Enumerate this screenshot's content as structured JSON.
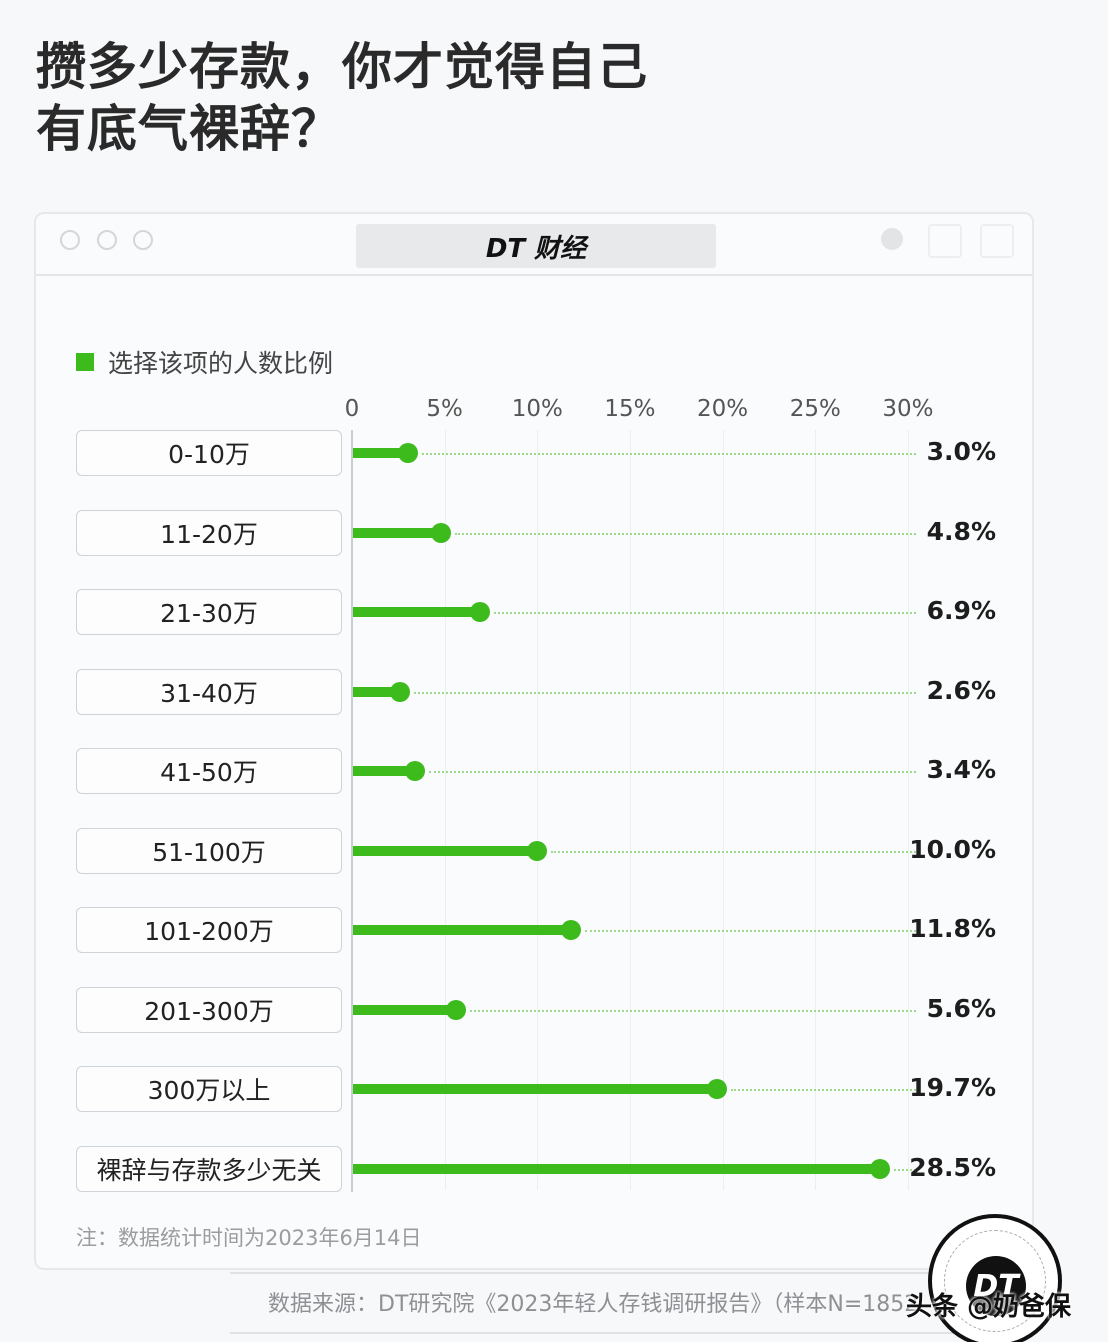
{
  "headline": {
    "line1": "攒多少存款，你才觉得自己",
    "line2": "有底气裸辞？"
  },
  "window": {
    "brand": "DT 财经"
  },
  "legend": {
    "label": "选择该项的人数比例",
    "color": "#3dbb1c"
  },
  "axis": {
    "ticks": [
      "0",
      "5%",
      "10%",
      "15%",
      "20%",
      "25%",
      "30%"
    ]
  },
  "rows": [
    {
      "label": "0-10万",
      "value": "3.0%"
    },
    {
      "label": "11-20万",
      "value": "4.8%"
    },
    {
      "label": "21-30万",
      "value": "6.9%"
    },
    {
      "label": "31-40万",
      "value": "2.6%"
    },
    {
      "label": "41-50万",
      "value": "3.4%"
    },
    {
      "label": "51-100万",
      "value": "10.0%"
    },
    {
      "label": "101-200万",
      "value": "11.8%"
    },
    {
      "label": "201-300万",
      "value": "5.6%"
    },
    {
      "label": "300万以上",
      "value": "19.7%"
    },
    {
      "label": "裸辞与存款多少无关",
      "value": "28.5%"
    }
  ],
  "footer": {
    "note": "注：数据统计时间为2023年6月14日",
    "source": "数据来源：DT研究院《2023年轻人存钱调研报告》（样本N=1852",
    "stamp": "DT",
    "credit": "头条 @奶爸保"
  },
  "chart_data": {
    "type": "bar",
    "orientation": "horizontal",
    "title": "攒多少存款，你才觉得自己有底气裸辞？",
    "categories": [
      "0-10万",
      "11-20万",
      "21-30万",
      "31-40万",
      "41-50万",
      "51-100万",
      "101-200万",
      "201-300万",
      "300万以上",
      "裸辞与存款多少无关"
    ],
    "series": [
      {
        "name": "选择该项的人数比例",
        "values": [
          3.0,
          4.8,
          6.9,
          2.6,
          3.4,
          10.0,
          11.8,
          5.6,
          19.7,
          28.5
        ]
      }
    ],
    "xlabel": "",
    "ylabel": "",
    "xlim": [
      0,
      30
    ],
    "x_ticks": [
      "0",
      "5%",
      "10%",
      "15%",
      "20%",
      "25%",
      "30%"
    ],
    "grid": true,
    "legend_position": "top-left",
    "annotations": [
      "注：数据统计时间为2023年6月14日",
      "数据来源：DT研究院《2023年轻人存钱调研报告》（样本N=1852"
    ]
  }
}
